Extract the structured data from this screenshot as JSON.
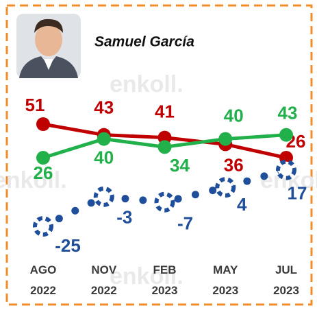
{
  "chart_data": {
    "type": "line",
    "title": "Samuel García",
    "watermark": "enkoll.",
    "categories": [
      "AGO 2022",
      "NOV 2022",
      "FEB 2023",
      "MAY 2023",
      "JUL 2023"
    ],
    "series": [
      {
        "color": "#c00000",
        "values": [
          51,
          43,
          41,
          36,
          26
        ]
      },
      {
        "color": "#22b04b",
        "values": [
          26,
          40,
          34,
          40,
          43
        ]
      },
      {
        "color": "#1f4e9a",
        "style": "dotted",
        "values": [
          -25,
          -3,
          -7,
          4,
          17
        ]
      }
    ]
  }
}
